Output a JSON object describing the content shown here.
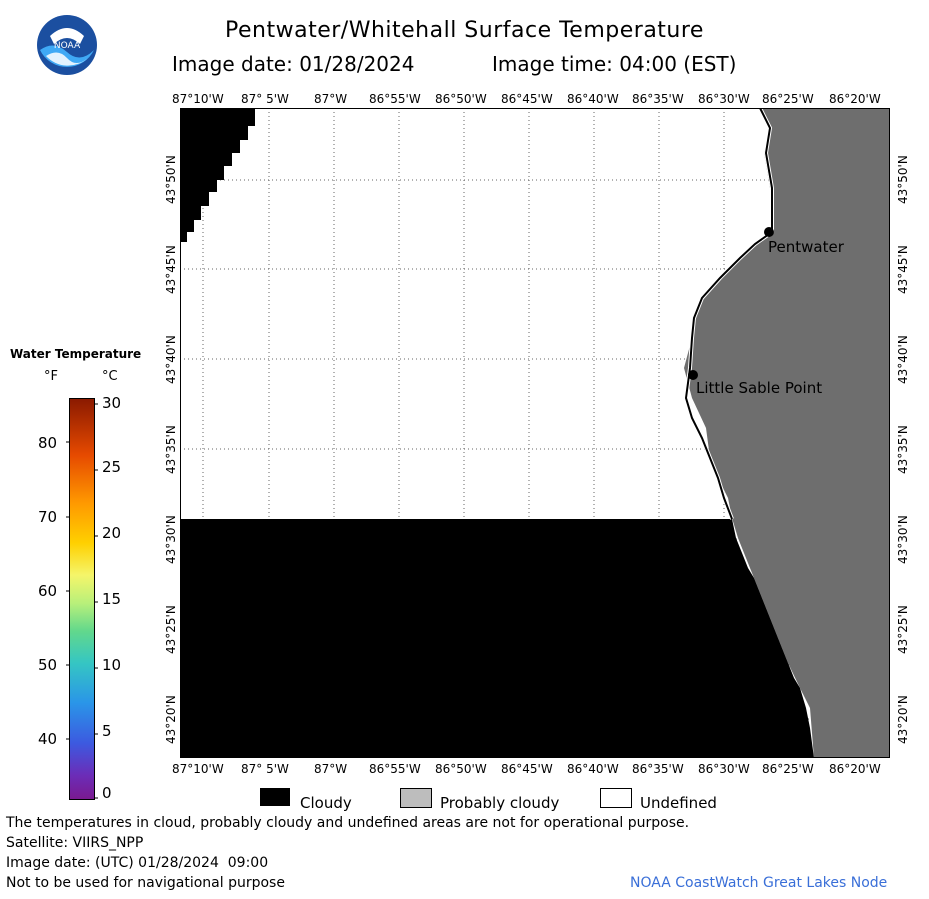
{
  "header": {
    "title": "Pentwater/Whitehall Surface Temperature",
    "image_date": "Image date: 01/28/2024",
    "image_time": "Image time: 04:00 (EST)"
  },
  "logo": {
    "text": "NOAA"
  },
  "map": {
    "lon_ticks": [
      "87°10'W",
      "87° 5'W",
      "87°W",
      "86°55'W",
      "86°50'W",
      "86°45'W",
      "86°40'W",
      "86°35'W",
      "86°30'W",
      "86°25'W",
      "86°20'W"
    ],
    "lat_ticks": [
      "43°50'N",
      "43°45'N",
      "43°40'N",
      "43°35'N",
      "43°30'N",
      "43°25'N",
      "43°20'N"
    ],
    "places": [
      {
        "name": "Pentwater"
      },
      {
        "name": "Little Sable Point"
      }
    ],
    "colors": {
      "cloudy": "#000000",
      "land": "#6e6e6e",
      "undefined": "#ffffff",
      "grid": "#666666"
    }
  },
  "temperature_legend": {
    "title": "Water Temperature",
    "unit_f": "°F",
    "unit_c": "°C",
    "f_ticks": [
      "80",
      "70",
      "60",
      "50",
      "40"
    ],
    "c_ticks": [
      "30",
      "25",
      "20",
      "15",
      "10",
      "5",
      "0"
    ]
  },
  "key": {
    "cloudy": "Cloudy",
    "probably_cloudy": "Probably cloudy",
    "undefined": "Undefined"
  },
  "footer": {
    "disclaimer": "The temperatures in cloud, probably cloudy and undefined areas are not for operational purpose.",
    "satellite": "Satellite: VIIRS_NPP",
    "utc_date": "Image date: (UTC) 01/28/2024  09:00",
    "nav_warning": "Not to be used for navigational purpose",
    "credit": "NOAA CoastWatch Great Lakes Node"
  }
}
